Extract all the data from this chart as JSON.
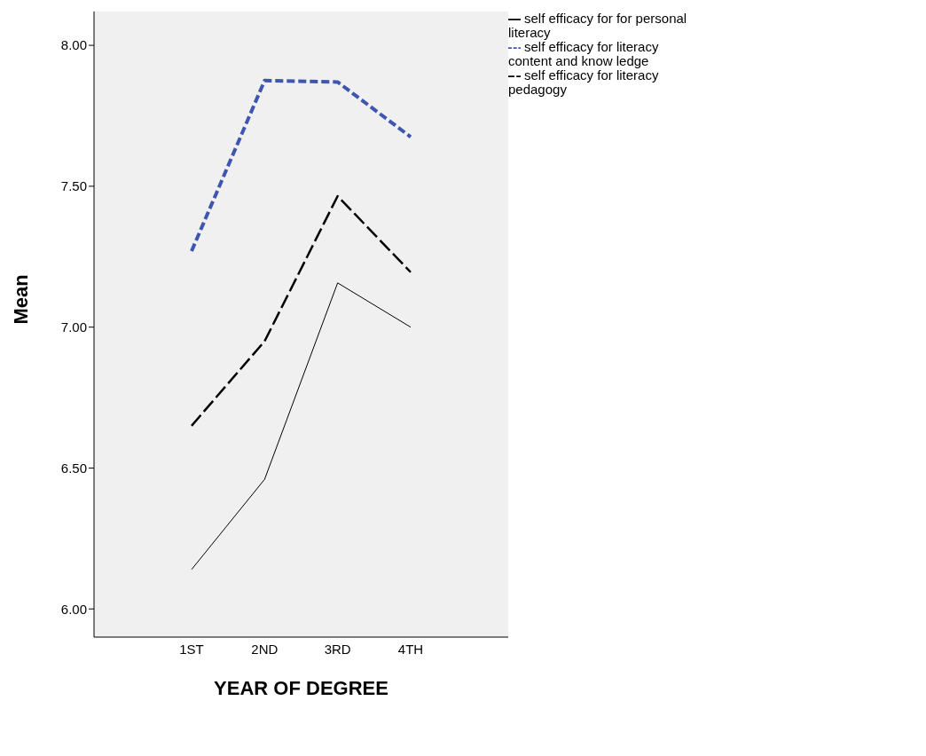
{
  "chart_data": {
    "type": "line",
    "xlabel": "YEAR OF DEGREE",
    "ylabel": "Mean",
    "categories": [
      "1ST",
      "2ND",
      "3RD",
      "4TH"
    ],
    "series": [
      {
        "name": "self efficacy for literacy content and know ledge",
        "color": "#3f56b0",
        "line_style": "dashed",
        "values": [
          7.27,
          7.875,
          7.87,
          7.675
        ]
      },
      {
        "name": "self efficacy for literacy pedagogy",
        "color": "#000000",
        "line_style": "dashed",
        "values": [
          6.65,
          6.95,
          7.465,
          7.195
        ]
      },
      {
        "name": "self efficacy for for personal literacy",
        "color": "#000000",
        "line_style": "solid",
        "values": [
          6.14,
          6.46,
          7.157,
          7.0
        ]
      }
    ],
    "ylim": [
      5.9,
      8.12
    ],
    "yticks": [
      {
        "value": 6,
        "label": "6.00"
      },
      {
        "value": 6.5,
        "label": "6.50"
      },
      {
        "value": 7,
        "label": "7.00"
      },
      {
        "value": 7.5,
        "label": "7.50"
      },
      {
        "value": 8,
        "label": "8.00"
      }
    ],
    "grid": false,
    "legend": "top right",
    "marker": "none"
  }
}
